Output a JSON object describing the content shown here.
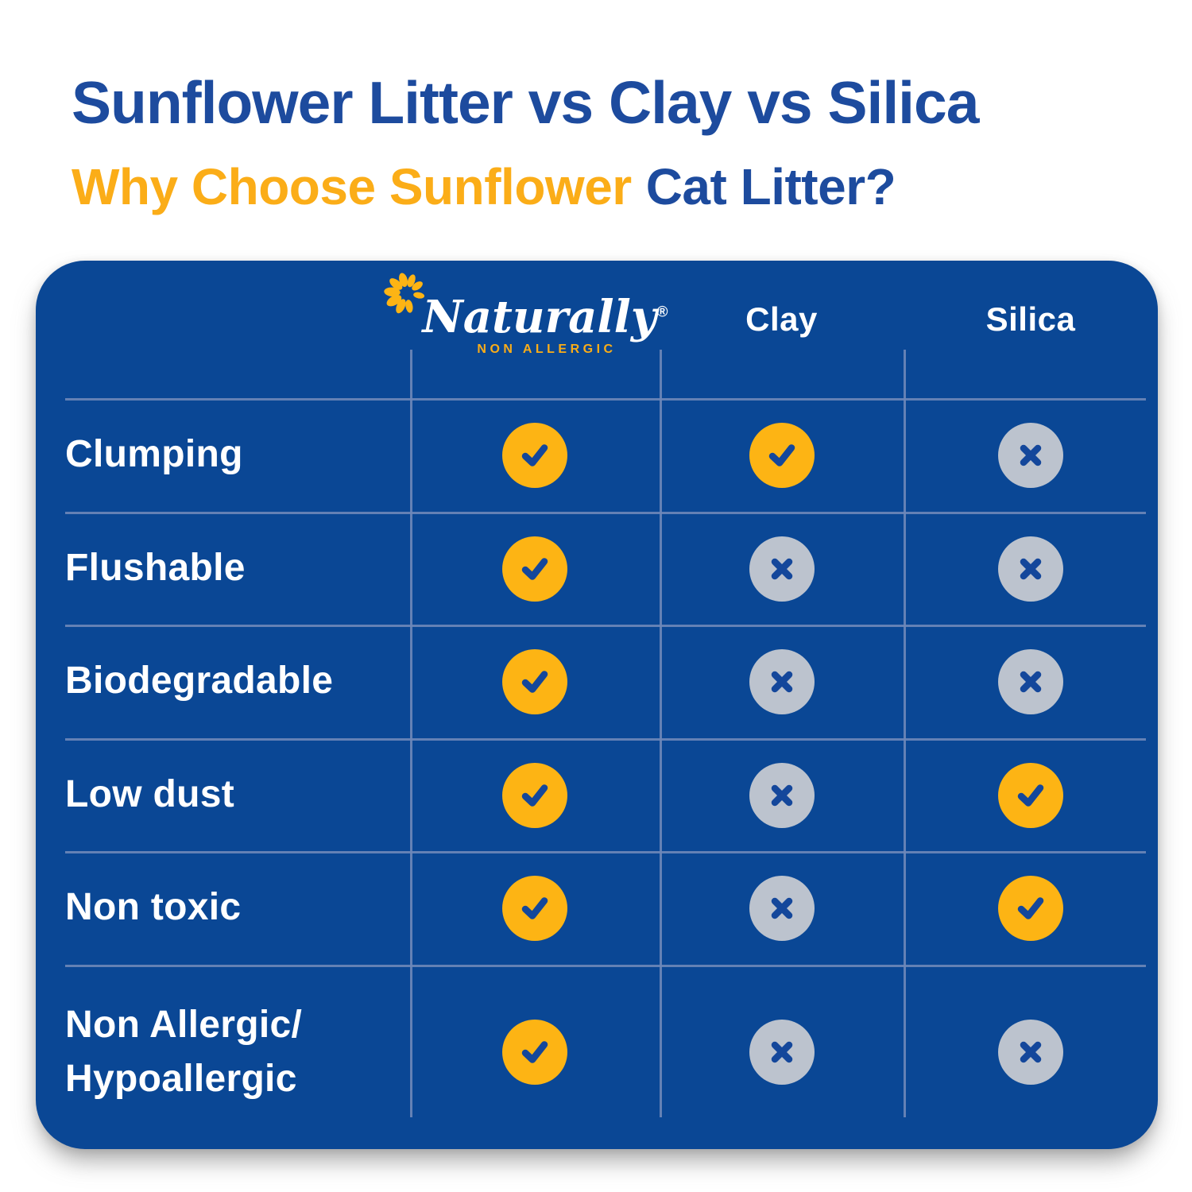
{
  "header": {
    "title": "Sunflower Litter vs Clay vs Silica",
    "subtitle_highlight": "Why Choose Sunflower",
    "subtitle_rest": "Cat Litter?"
  },
  "table": {
    "brand": {
      "name": "Naturally",
      "registered": "®",
      "tagline": "NON ALLERGIC",
      "logo_icon": "sunflower-icon"
    },
    "columns": [
      "Naturally Non Allergic",
      "Clay",
      "Silica"
    ],
    "rows": [
      {
        "label_lines": [
          "Clumping"
        ],
        "values": [
          "yes",
          "yes",
          "no"
        ]
      },
      {
        "label_lines": [
          "Flushable"
        ],
        "values": [
          "yes",
          "no",
          "no"
        ]
      },
      {
        "label_lines": [
          "Biodegradable"
        ],
        "values": [
          "yes",
          "no",
          "no"
        ]
      },
      {
        "label_lines": [
          "Low dust"
        ],
        "values": [
          "yes",
          "no",
          "yes"
        ]
      },
      {
        "label_lines": [
          "Non toxic"
        ],
        "values": [
          "yes",
          "no",
          "yes"
        ]
      },
      {
        "label_lines": [
          "Non Allergic/",
          "Hypoallergic"
        ],
        "values": [
          "yes",
          "no",
          "no"
        ]
      }
    ],
    "icons": {
      "yes": "check-icon",
      "no": "x-icon"
    }
  },
  "chart_data": {
    "type": "table",
    "title": "Sunflower Litter vs Clay vs Silica",
    "subtitle": "Why Choose Sunflower Cat Litter?",
    "columns": [
      "Naturally Non Allergic",
      "Clay",
      "Silica"
    ],
    "rows": [
      "Clumping",
      "Flushable",
      "Biodegradable",
      "Low dust",
      "Non toxic",
      "Non Allergic/Hypoallergic"
    ],
    "values": [
      [
        "yes",
        "yes",
        "no"
      ],
      [
        "yes",
        "no",
        "no"
      ],
      [
        "yes",
        "no",
        "no"
      ],
      [
        "yes",
        "no",
        "yes"
      ],
      [
        "yes",
        "no",
        "yes"
      ],
      [
        "yes",
        "no",
        "no"
      ]
    ],
    "legend": {
      "yes": "yellow circle with blue check mark",
      "no": "gray circle with blue x mark"
    }
  },
  "colors": {
    "title_blue": "#1D4B9E",
    "accent_yellow": "#FBAD18",
    "card_blue": "#0A4795",
    "check_circle_yellow": "#FDB414",
    "x_circle_gray": "#BCC3CE",
    "icon_stroke_blue": "#14479B",
    "divider": "#6E87B8",
    "text_white": "#FFFFFF"
  }
}
